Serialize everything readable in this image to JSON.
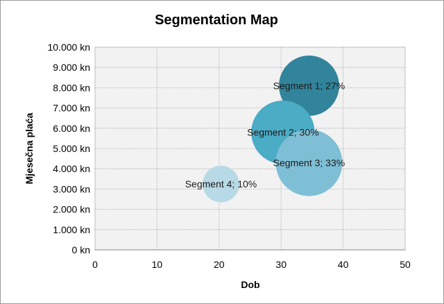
{
  "chart_data": {
    "type": "scatter",
    "title": "Segmentation Map",
    "xlabel": "Dob",
    "ylabel": "Mjesečna plaća",
    "xlim": [
      0,
      50
    ],
    "ylim": [
      0,
      10000
    ],
    "x_ticks": [
      "0",
      "10",
      "20",
      "30",
      "40",
      "50"
    ],
    "y_ticks": [
      "0 kn",
      "1.000 kn",
      "2.000 kn",
      "3.000 kn",
      "4.000 kn",
      "5.000 kn",
      "6.000 kn",
      "7.000 kn",
      "8.000 kn",
      "9.000 kn",
      "10.000 kn"
    ],
    "grid": true,
    "plot_background": "#f2f2f2",
    "series": [
      {
        "x": 34.5,
        "y": 8100,
        "share": 27,
        "label": "Segment 1; 27%",
        "color": "#31849b"
      },
      {
        "x": 30.3,
        "y": 5800,
        "share": 30,
        "label": "Segment 2; 30%",
        "color": "#4bacc6"
      },
      {
        "x": 34.5,
        "y": 4300,
        "share": 33,
        "label": "Segment 3; 33%",
        "color": "#7fbfd6"
      },
      {
        "x": 20.3,
        "y": 3250,
        "share": 10,
        "label": "Segment 4; 10%",
        "color": "#b8d9e6"
      }
    ]
  }
}
